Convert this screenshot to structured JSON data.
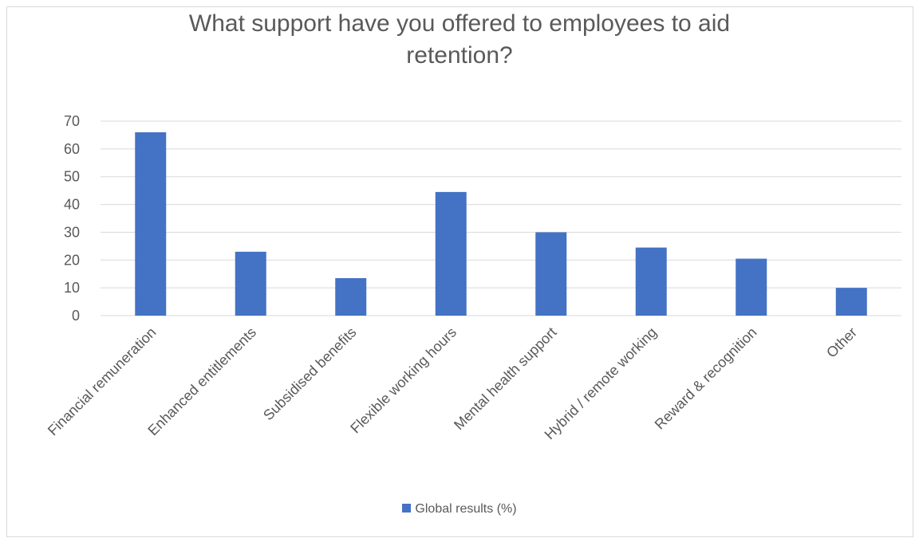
{
  "chart_data": {
    "type": "bar",
    "title_lines": [
      "What support have you offered to employees to aid",
      "retention?"
    ],
    "categories": [
      "Financial remuneration",
      "Enhanced entitlements",
      "Subsidised benefits",
      "Flexible working hours",
      "Mental health support",
      "Hybrid / remote working",
      "Reward & recognition",
      "Other"
    ],
    "series": [
      {
        "name": "Global results (%)",
        "values": [
          66,
          23,
          13.5,
          44.5,
          30,
          24.5,
          20.5,
          10
        ],
        "color": "#4472c4"
      }
    ],
    "ylim": [
      0,
      70
    ],
    "yticks": [
      0,
      10,
      20,
      30,
      40,
      50,
      60,
      70
    ],
    "grid": true,
    "legend_position": "bottom"
  }
}
